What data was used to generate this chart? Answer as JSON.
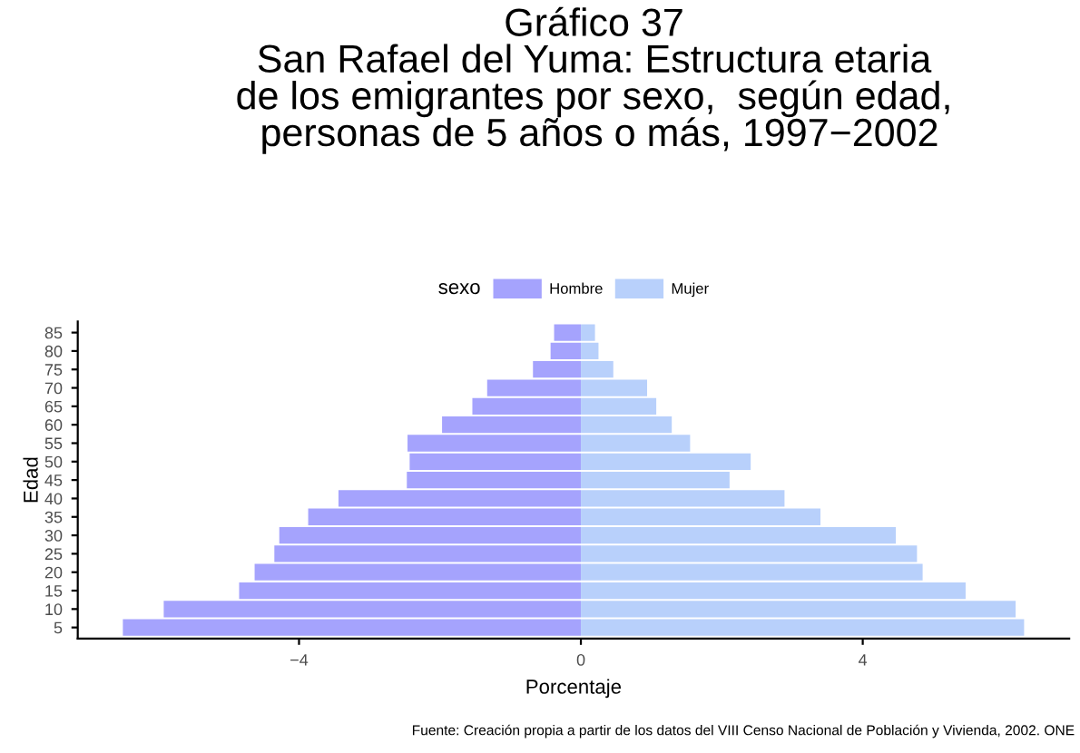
{
  "chart_data": {
    "type": "bar",
    "orientation": "horizontal",
    "stacked": true,
    "title": "Gráfico 37\nSan Rafael del Yuma: Estructura etaria\nde los emigrantes por sexo,  según edad,\n personas de 5 años o más, 1997−2002",
    "xlabel": "Porcentaje",
    "ylabel": "Edad",
    "legend_title": "sexo",
    "legend": "top",
    "grid": false,
    "categories": [
      "85",
      "80",
      "75",
      "70",
      "65",
      "60",
      "55",
      "50",
      "45",
      "40",
      "35",
      "30",
      "25",
      "20",
      "15",
      "10",
      "5"
    ],
    "series": [
      {
        "name": "Hombre",
        "color": "#a5a3fd",
        "values": [
          -0.38,
          -0.43,
          -0.68,
          -1.33,
          -1.54,
          -1.97,
          -2.46,
          -2.43,
          -2.47,
          -3.44,
          -3.87,
          -4.28,
          -4.35,
          -4.63,
          -4.85,
          -5.92,
          -6.5
        ]
      },
      {
        "name": "Mujer",
        "color": "#b8d0fb",
        "values": [
          0.2,
          0.25,
          0.46,
          0.94,
          1.07,
          1.29,
          1.55,
          2.41,
          2.11,
          2.89,
          3.4,
          4.47,
          4.77,
          4.85,
          5.46,
          6.17,
          6.29
        ]
      }
    ],
    "xlim": [
      -7.14,
      6.93
    ],
    "xticks": [
      {
        "value": -4,
        "label": "−4"
      },
      0,
      4
    ],
    "annotations": [
      "Fuente: Creación propia a partir de los datos del VIII Censo Nacional de Población y Vivienda, 2002. ONE"
    ]
  }
}
